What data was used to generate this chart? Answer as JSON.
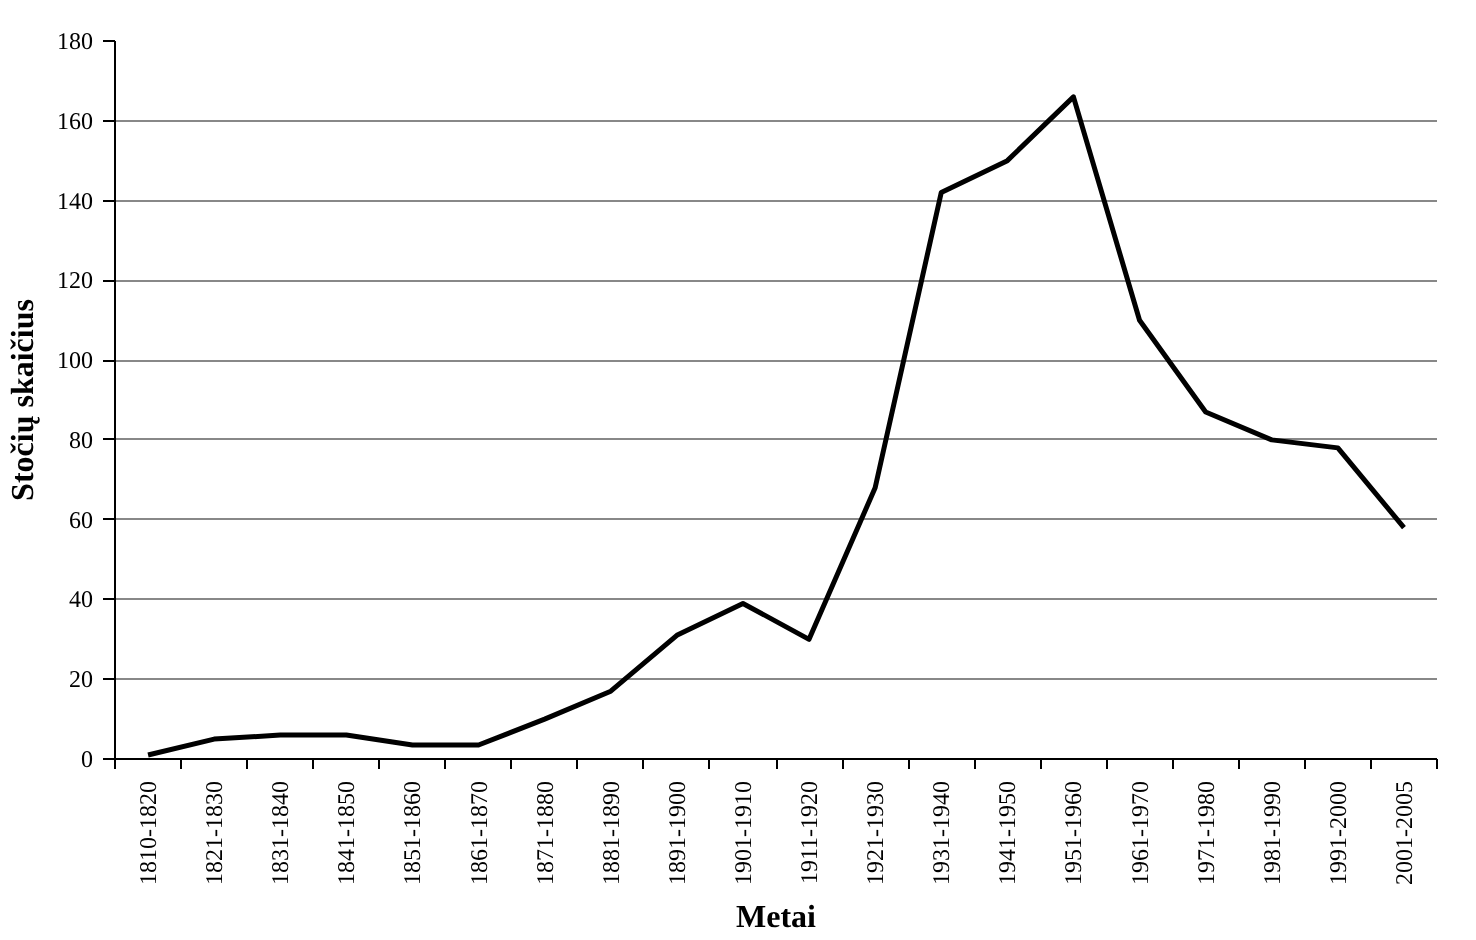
{
  "chart_data": {
    "type": "line",
    "xlabel": "Metai",
    "ylabel": "Stočių skaičius",
    "categories": [
      "1810-1820",
      "1821-1830",
      "1831-1840",
      "1841-1850",
      "1851-1860",
      "1861-1870",
      "1871-1880",
      "1881-1890",
      "1891-1900",
      "1901-1910",
      "1911-1920",
      "1921-1930",
      "1931-1940",
      "1941-1950",
      "1951-1960",
      "1961-1970",
      "1971-1980",
      "1981-1990",
      "1991-2000",
      "2001-2005"
    ],
    "series": [
      {
        "color": "#000000",
        "values": [
          1,
          5,
          6,
          6,
          3.5,
          3.5,
          10,
          17,
          31,
          39,
          30,
          68,
          142,
          150,
          166,
          110,
          87,
          80,
          78,
          58
        ]
      }
    ],
    "ylim": [
      0,
      180
    ],
    "yticks": [
      0,
      20,
      40,
      60,
      80,
      100,
      120,
      140,
      160,
      180
    ],
    "grid": "y",
    "marker": "none",
    "line_style": "solid"
  }
}
